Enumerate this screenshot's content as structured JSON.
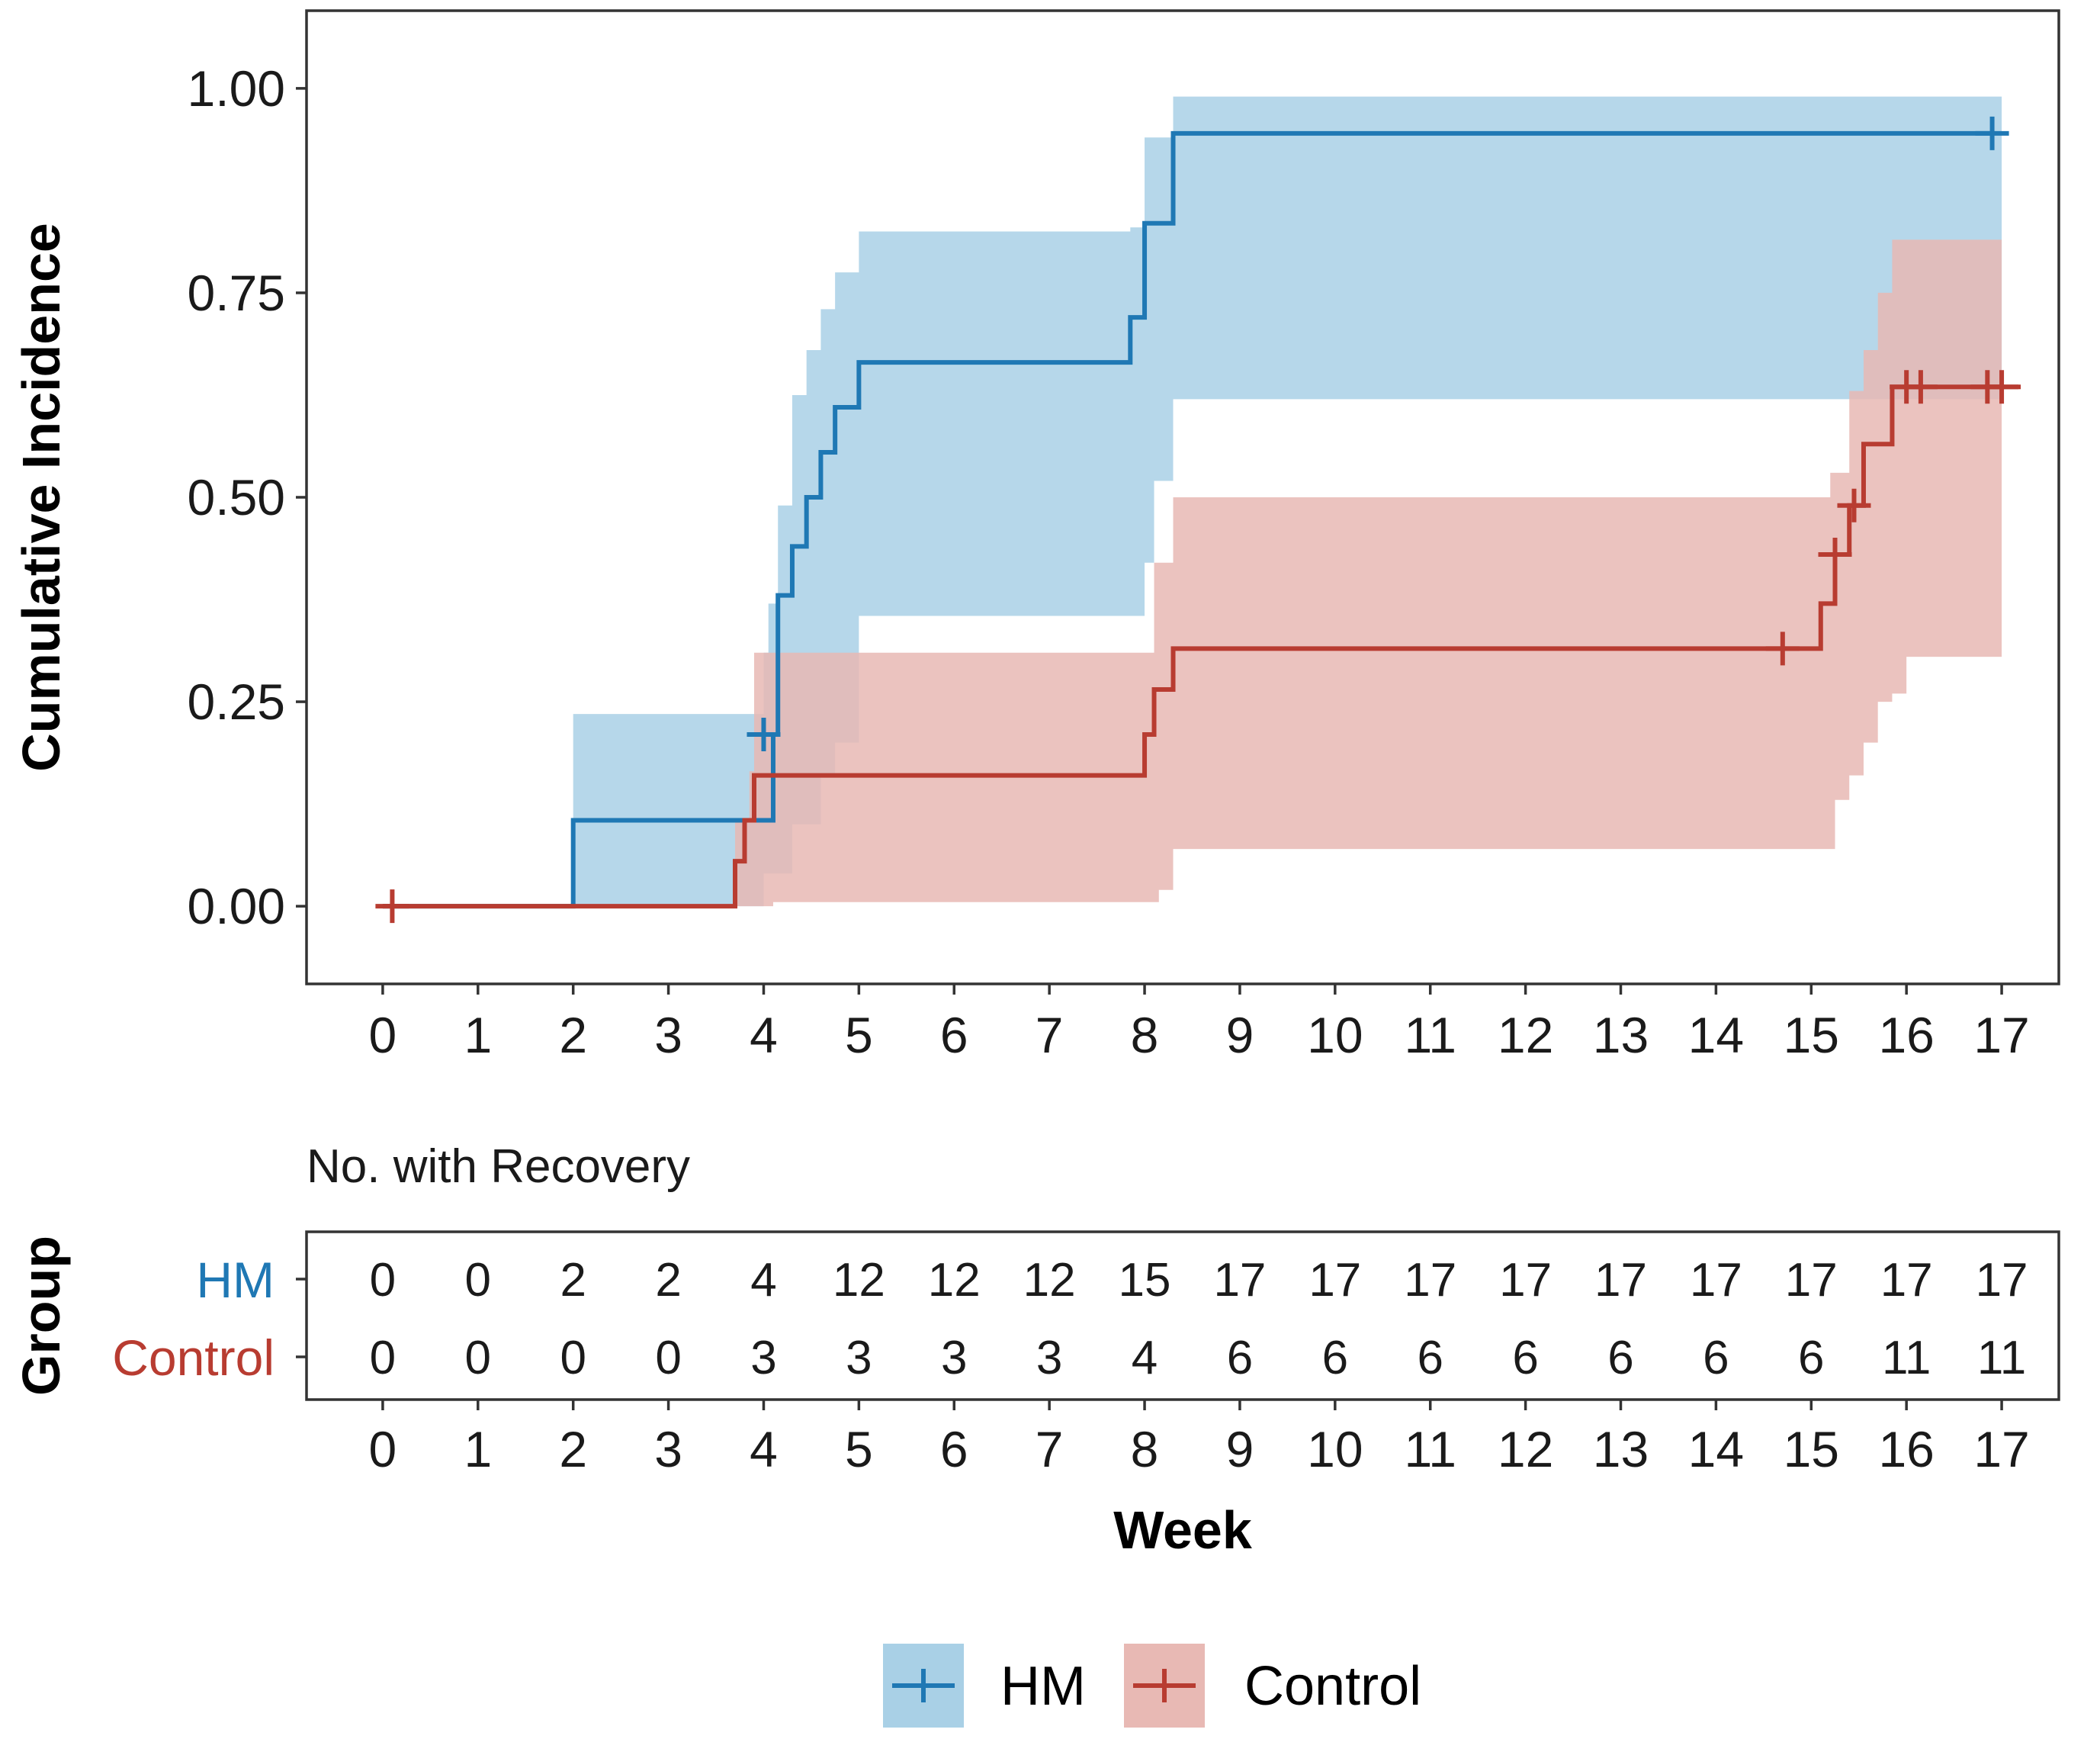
{
  "chart_data": {
    "type": "line",
    "subtype": "step",
    "ylabel": "Cumulative Incidence",
    "xlabel": "Week",
    "xlim": [
      -0.8,
      17.6
    ],
    "ylim": [
      -0.095,
      1.095
    ],
    "x_ticks": [
      "0",
      "1",
      "2",
      "3",
      "4",
      "5",
      "6",
      "7",
      "8",
      "9",
      "10",
      "11",
      "12",
      "13",
      "14",
      "15",
      "16",
      "17"
    ],
    "y_ticks": [
      "0.00",
      "0.25",
      "0.50",
      "0.75",
      "1.00"
    ],
    "grid": false,
    "legend_position": "bottom",
    "colors": {
      "HM": "#1f78b4",
      "Control": "#b83c31",
      "HM_band": "#a9d0e6",
      "Control_band": "#e8b9b4"
    },
    "series": [
      {
        "name": "HM",
        "steps": [
          [
            0,
            0
          ],
          [
            2,
            0.105
          ],
          [
            4.1,
            0.21
          ],
          [
            4.15,
            0.38
          ],
          [
            4.3,
            0.44
          ],
          [
            4.45,
            0.5
          ],
          [
            4.6,
            0.555
          ],
          [
            4.75,
            0.61
          ],
          [
            5.0,
            0.665
          ],
          [
            7.85,
            0.72
          ],
          [
            8.0,
            0.835
          ],
          [
            8.3,
            0.945
          ],
          [
            16.9,
            0.945
          ]
        ],
        "lower": [
          [
            0,
            0
          ],
          [
            2,
            0
          ],
          [
            4.0,
            0.04
          ],
          [
            4.3,
            0.1
          ],
          [
            4.6,
            0.16
          ],
          [
            4.75,
            0.2
          ],
          [
            5.0,
            0.355
          ],
          [
            7.85,
            0.355
          ],
          [
            8.0,
            0.42
          ],
          [
            8.1,
            0.52
          ],
          [
            8.3,
            0.62
          ],
          [
            17.0,
            0.62
          ]
        ],
        "upper": [
          [
            0,
            0
          ],
          [
            2,
            0.235
          ],
          [
            4.0,
            0.31
          ],
          [
            4.05,
            0.37
          ],
          [
            4.15,
            0.49
          ],
          [
            4.3,
            0.625
          ],
          [
            4.45,
            0.68
          ],
          [
            4.6,
            0.73
          ],
          [
            4.75,
            0.775
          ],
          [
            5.0,
            0.825
          ],
          [
            7.85,
            0.83
          ],
          [
            8.0,
            0.94
          ],
          [
            8.3,
            0.99
          ],
          [
            17.0,
            0.99
          ]
        ],
        "censored": [
          [
            4.0,
            0.21
          ],
          [
            16.9,
            0.945
          ]
        ]
      },
      {
        "name": "Control",
        "steps": [
          [
            0,
            0
          ],
          [
            3.7,
            0.055
          ],
          [
            3.8,
            0.105
          ],
          [
            3.9,
            0.16
          ],
          [
            8.0,
            0.21
          ],
          [
            8.1,
            0.265
          ],
          [
            8.3,
            0.315
          ],
          [
            15.1,
            0.37
          ],
          [
            15.25,
            0.43
          ],
          [
            15.4,
            0.49
          ],
          [
            15.55,
            0.565
          ],
          [
            15.85,
            0.635
          ],
          [
            17.2,
            0.635
          ]
        ],
        "lower": [
          [
            0,
            0
          ],
          [
            3.8,
            0
          ],
          [
            4.1,
            0.005
          ],
          [
            8.0,
            0.005
          ],
          [
            8.15,
            0.02
          ],
          [
            8.3,
            0.07
          ],
          [
            15.1,
            0.07
          ],
          [
            15.25,
            0.13
          ],
          [
            15.4,
            0.16
          ],
          [
            15.55,
            0.2
          ],
          [
            15.7,
            0.25
          ],
          [
            15.85,
            0.26
          ],
          [
            16.0,
            0.305
          ],
          [
            17.0,
            0.305
          ]
        ],
        "upper": [
          [
            0,
            0
          ],
          [
            3.7,
            0.105
          ],
          [
            3.85,
            0.165
          ],
          [
            3.9,
            0.31
          ],
          [
            4.3,
            0.31
          ],
          [
            4.4,
            0.31
          ],
          [
            8.0,
            0.31
          ],
          [
            8.1,
            0.42
          ],
          [
            8.3,
            0.5
          ],
          [
            15.1,
            0.5
          ],
          [
            15.2,
            0.53
          ],
          [
            15.4,
            0.63
          ],
          [
            15.55,
            0.68
          ],
          [
            15.7,
            0.75
          ],
          [
            15.85,
            0.815
          ],
          [
            17.0,
            0.815
          ]
        ],
        "censored": [
          [
            0.1,
            0
          ],
          [
            14.7,
            0.315
          ],
          [
            15.25,
            0.43
          ],
          [
            15.45,
            0.49
          ],
          [
            16.0,
            0.635
          ],
          [
            16.15,
            0.635
          ],
          [
            16.85,
            0.635
          ],
          [
            17.0,
            0.635
          ]
        ]
      }
    ],
    "risk_table": {
      "title": "No. with Recovery",
      "group_axis_label": "Group",
      "weeks": [
        "0",
        "1",
        "2",
        "3",
        "4",
        "5",
        "6",
        "7",
        "8",
        "9",
        "10",
        "11",
        "12",
        "13",
        "14",
        "15",
        "16",
        "17"
      ],
      "rows": [
        {
          "group": "HM",
          "values": [
            "0",
            "0",
            "2",
            "2",
            "4",
            "12",
            "12",
            "12",
            "15",
            "17",
            "17",
            "17",
            "17",
            "17",
            "17",
            "17",
            "17",
            "17"
          ]
        },
        {
          "group": "Control",
          "values": [
            "0",
            "0",
            "0",
            "0",
            "3",
            "3",
            "3",
            "3",
            "4",
            "6",
            "6",
            "6",
            "6",
            "6",
            "6",
            "6",
            "11",
            "11"
          ]
        }
      ]
    }
  }
}
